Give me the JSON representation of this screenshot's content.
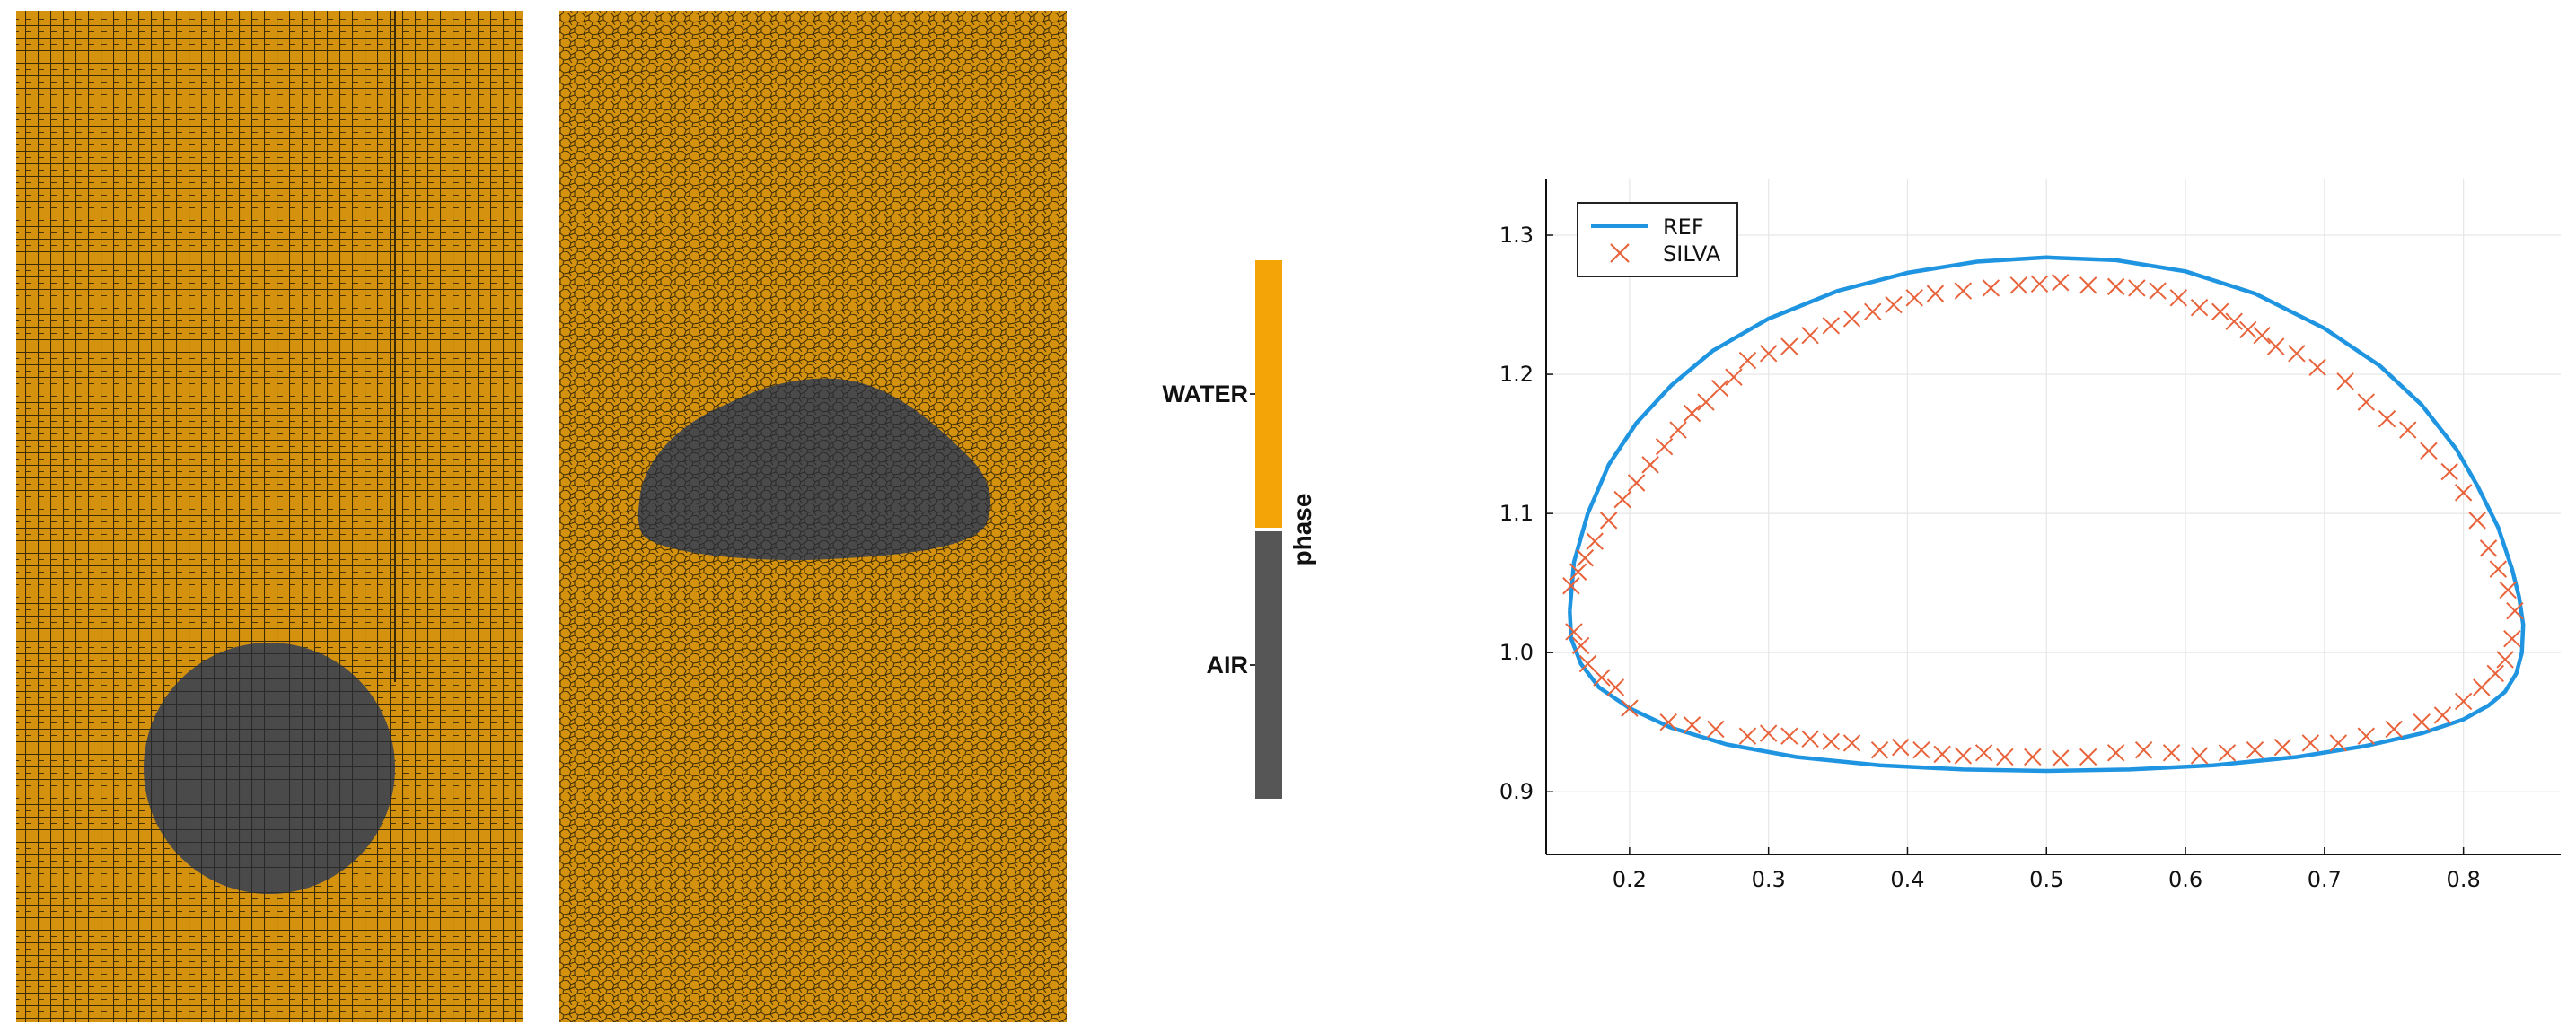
{
  "colors": {
    "water": "#d4920f",
    "water_bar": "#f5a407",
    "air": "#4a4a4a",
    "air_bar": "#565656",
    "mesh_line": "#3a2a05",
    "ref_line": "#1f94e0",
    "silva_marker": "#e8623a"
  },
  "phase_legend": {
    "title": "phase",
    "labels": [
      "WATER",
      "AIR"
    ]
  },
  "chart_data": {
    "type": "line",
    "title": "",
    "xlabel": "",
    "ylabel": "",
    "xlim": [
      0.14,
      0.87
    ],
    "ylim": [
      0.855,
      1.34
    ],
    "xticks": [
      0.2,
      0.3,
      0.4,
      0.5,
      0.6,
      0.7,
      0.8
    ],
    "yticks": [
      0.9,
      1.0,
      1.1,
      1.2,
      1.3
    ],
    "grid": true,
    "legend_position": "top-left",
    "series": [
      {
        "name": "REF",
        "kind": "line",
        "x": [
          0.157,
          0.16,
          0.17,
          0.185,
          0.205,
          0.23,
          0.26,
          0.3,
          0.35,
          0.4,
          0.45,
          0.5,
          0.55,
          0.6,
          0.65,
          0.7,
          0.74,
          0.77,
          0.795,
          0.81,
          0.825,
          0.835,
          0.84,
          0.843,
          0.842,
          0.838,
          0.83,
          0.818,
          0.8,
          0.77,
          0.73,
          0.68,
          0.62,
          0.56,
          0.5,
          0.44,
          0.38,
          0.32,
          0.27,
          0.23,
          0.2,
          0.178,
          0.165,
          0.158,
          0.157
        ],
        "y": [
          1.03,
          1.065,
          1.1,
          1.135,
          1.165,
          1.192,
          1.217,
          1.24,
          1.26,
          1.273,
          1.281,
          1.284,
          1.282,
          1.274,
          1.258,
          1.233,
          1.206,
          1.178,
          1.146,
          1.12,
          1.09,
          1.06,
          1.04,
          1.02,
          1.0,
          0.985,
          0.972,
          0.962,
          0.952,
          0.942,
          0.933,
          0.925,
          0.919,
          0.916,
          0.915,
          0.916,
          0.919,
          0.925,
          0.934,
          0.946,
          0.96,
          0.975,
          0.992,
          1.01,
          1.03
        ]
      },
      {
        "name": "SILVA",
        "kind": "scatter",
        "x": [
          0.158,
          0.163,
          0.168,
          0.175,
          0.185,
          0.195,
          0.205,
          0.215,
          0.225,
          0.235,
          0.245,
          0.255,
          0.265,
          0.275,
          0.285,
          0.3,
          0.315,
          0.33,
          0.345,
          0.36,
          0.375,
          0.39,
          0.405,
          0.42,
          0.44,
          0.46,
          0.48,
          0.495,
          0.51,
          0.53,
          0.55,
          0.565,
          0.58,
          0.595,
          0.61,
          0.625,
          0.635,
          0.645,
          0.655,
          0.665,
          0.68,
          0.695,
          0.715,
          0.73,
          0.745,
          0.76,
          0.775,
          0.79,
          0.8,
          0.81,
          0.818,
          0.825,
          0.832,
          0.837,
          0.835,
          0.83,
          0.823,
          0.813,
          0.8,
          0.785,
          0.77,
          0.75,
          0.73,
          0.71,
          0.69,
          0.67,
          0.65,
          0.63,
          0.61,
          0.59,
          0.57,
          0.55,
          0.53,
          0.51,
          0.49,
          0.47,
          0.455,
          0.44,
          0.425,
          0.41,
          0.395,
          0.38,
          0.36,
          0.345,
          0.33,
          0.315,
          0.3,
          0.285,
          0.262,
          0.245,
          0.228,
          0.2,
          0.19,
          0.18,
          0.17,
          0.165,
          0.16
        ],
        "y": [
          1.048,
          1.058,
          1.068,
          1.08,
          1.095,
          1.11,
          1.122,
          1.135,
          1.148,
          1.16,
          1.172,
          1.18,
          1.19,
          1.198,
          1.21,
          1.215,
          1.22,
          1.228,
          1.235,
          1.24,
          1.245,
          1.25,
          1.255,
          1.258,
          1.26,
          1.262,
          1.264,
          1.265,
          1.266,
          1.264,
          1.263,
          1.262,
          1.26,
          1.255,
          1.248,
          1.245,
          1.238,
          1.232,
          1.228,
          1.22,
          1.215,
          1.205,
          1.195,
          1.18,
          1.168,
          1.16,
          1.145,
          1.13,
          1.115,
          1.095,
          1.075,
          1.06,
          1.045,
          1.03,
          1.01,
          0.995,
          0.985,
          0.975,
          0.965,
          0.955,
          0.95,
          0.945,
          0.94,
          0.935,
          0.935,
          0.932,
          0.93,
          0.928,
          0.926,
          0.928,
          0.93,
          0.928,
          0.925,
          0.924,
          0.925,
          0.925,
          0.928,
          0.926,
          0.927,
          0.93,
          0.932,
          0.93,
          0.935,
          0.936,
          0.938,
          0.94,
          0.942,
          0.94,
          0.945,
          0.948,
          0.95,
          0.96,
          0.975,
          0.982,
          0.992,
          1.005,
          1.015
        ]
      }
    ]
  }
}
